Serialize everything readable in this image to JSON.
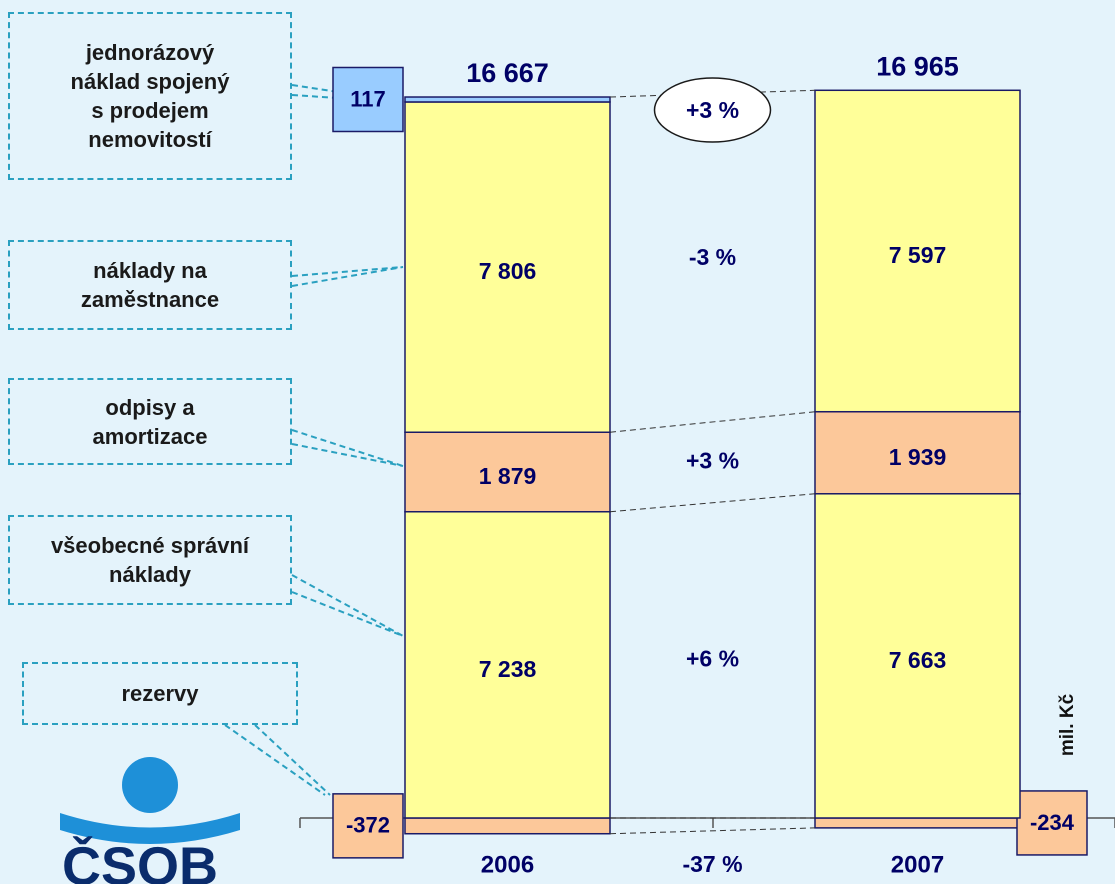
{
  "chart_data": {
    "type": "bar",
    "stacked": true,
    "categories": [
      "2006",
      "2007"
    ],
    "series": [
      {
        "name": "rezervy",
        "color": "#fcc89a",
        "values": [
          -372,
          -234
        ],
        "value_labels": [
          "-372",
          "-234"
        ],
        "change": "-37 %"
      },
      {
        "name": "všeobecné správní náklady",
        "color": "#ffff99",
        "values": [
          7238,
          7663
        ],
        "value_labels": [
          "7 238",
          "7 663"
        ],
        "change": "+6 %"
      },
      {
        "name": "odpisy a amortizace",
        "color": "#fcc89a",
        "values": [
          1879,
          1939
        ],
        "value_labels": [
          "1 879",
          "1 939"
        ],
        "change": "+3 %"
      },
      {
        "name": "náklady na zaměstnance",
        "color": "#ffff99",
        "values": [
          7806,
          7597
        ],
        "value_labels": [
          "7 806",
          "7 597"
        ],
        "change": "-3 %"
      },
      {
        "name": "jednorázový náklad spojený s prodejem nemovitostí",
        "color": "#99ccff",
        "values": [
          117,
          null
        ],
        "value_labels": [
          "117",
          null
        ]
      }
    ],
    "totals": {
      "values": [
        16667,
        16965
      ],
      "value_labels": [
        "16 667",
        "16 965"
      ],
      "change": "+3 %"
    },
    "unit": "mil. Kč",
    "ylim": [
      -1000,
      18000
    ],
    "logo": "ČSOB"
  }
}
